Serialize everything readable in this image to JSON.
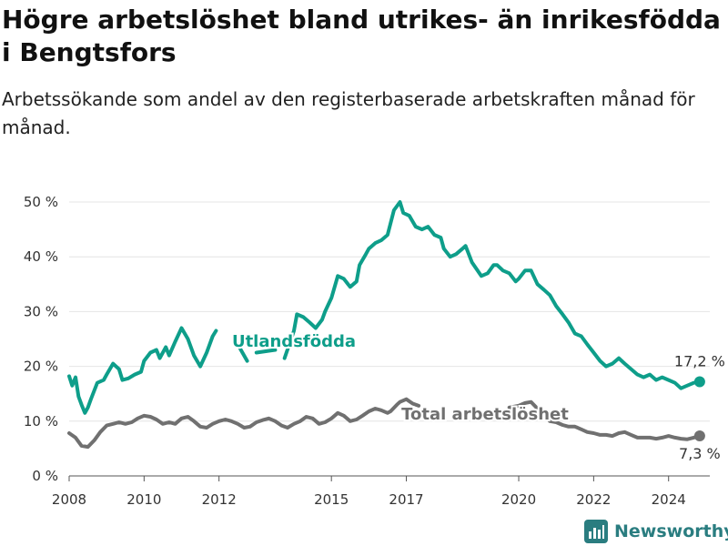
{
  "header": {
    "title": "Högre arbetslöshet bland utrikes- än inrikesfödda i Bengtsfors",
    "subtitle": "Arbetssökande som andel av den registerbaserade arbetskraften månad för månad."
  },
  "branding": {
    "name": "Newsworthy",
    "icon": "bar-chart-logo-icon",
    "color": "#2a7d80"
  },
  "chart_data": {
    "type": "line",
    "title": "Högre arbetslöshet bland utrikes- än inrikesfödda i Bengtsfors",
    "subtitle": "Arbetssökande som andel av den registerbaserade arbetskraften månad för månad.",
    "xlim": [
      2008,
      2025.1
    ],
    "ylim": [
      0,
      50
    ],
    "x_ticks": [
      2008,
      2010,
      2012,
      2015,
      2017,
      2020,
      2022,
      2024
    ],
    "x_tick_labels": [
      "2008",
      "2010",
      "2012",
      "2015",
      "2017",
      "2020",
      "2022",
      "2024"
    ],
    "y_ticks": [
      0,
      10,
      20,
      30,
      40,
      50
    ],
    "y_tick_labels": [
      "0 %",
      "10 %",
      "20 %",
      "30 %",
      "40 %",
      "50 %"
    ],
    "grid": "horizontal",
    "series": [
      {
        "name": "Utlandsfödda",
        "color": "#0e9e8a",
        "end_label": "17,2 %",
        "points": [
          [
            2008.0,
            18.2
          ],
          [
            2008.08,
            16.5
          ],
          [
            2008.17,
            18.0
          ],
          [
            2008.25,
            14.5
          ],
          [
            2008.33,
            13.0
          ],
          [
            2008.42,
            11.5
          ],
          [
            2008.5,
            12.5
          ],
          [
            2008.58,
            14.0
          ],
          [
            2008.75,
            17.0
          ],
          [
            2008.92,
            17.5
          ],
          [
            2009.0,
            18.5
          ],
          [
            2009.17,
            20.5
          ],
          [
            2009.33,
            19.5
          ],
          [
            2009.42,
            17.5
          ],
          [
            2009.58,
            17.8
          ],
          [
            2009.75,
            18.5
          ],
          [
            2009.92,
            19.0
          ],
          [
            2010.0,
            21.0
          ],
          [
            2010.17,
            22.5
          ],
          [
            2010.33,
            23.0
          ],
          [
            2010.42,
            21.5
          ],
          [
            2010.58,
            23.5
          ],
          [
            2010.67,
            22.0
          ],
          [
            2010.83,
            24.5
          ],
          [
            2011.0,
            27.0
          ],
          [
            2011.17,
            25.0
          ],
          [
            2011.33,
            22.0
          ],
          [
            2011.5,
            20.0
          ],
          [
            2011.67,
            22.5
          ],
          [
            2011.83,
            25.5
          ],
          [
            2011.92,
            26.5
          ],
          [
            2012.5,
            24.0
          ],
          [
            2012.75,
            21.0
          ],
          [
            2013.0,
            22.5
          ],
          [
            2013.5,
            23.0
          ],
          [
            2013.75,
            21.5
          ],
          [
            2014.0,
            26.5
          ],
          [
            2014.08,
            29.5
          ],
          [
            2014.25,
            29.0
          ],
          [
            2014.42,
            28.0
          ],
          [
            2014.58,
            27.0
          ],
          [
            2014.75,
            28.5
          ],
          [
            2014.83,
            30.0
          ],
          [
            2015.0,
            32.5
          ],
          [
            2015.17,
            36.5
          ],
          [
            2015.33,
            36.0
          ],
          [
            2015.5,
            34.5
          ],
          [
            2015.67,
            35.5
          ],
          [
            2015.75,
            38.5
          ],
          [
            2015.92,
            40.5
          ],
          [
            2016.0,
            41.5
          ],
          [
            2016.17,
            42.5
          ],
          [
            2016.33,
            43.0
          ],
          [
            2016.5,
            44.0
          ],
          [
            2016.67,
            48.5
          ],
          [
            2016.83,
            50.0
          ],
          [
            2016.92,
            48.0
          ],
          [
            2017.08,
            47.5
          ],
          [
            2017.25,
            45.5
          ],
          [
            2017.42,
            45.0
          ],
          [
            2017.58,
            45.5
          ],
          [
            2017.75,
            44.0
          ],
          [
            2017.92,
            43.5
          ],
          [
            2018.0,
            41.5
          ],
          [
            2018.17,
            40.0
          ],
          [
            2018.33,
            40.5
          ],
          [
            2018.5,
            41.5
          ],
          [
            2018.58,
            42.0
          ],
          [
            2018.75,
            39.0
          ],
          [
            2019.0,
            36.5
          ],
          [
            2019.17,
            37.0
          ],
          [
            2019.33,
            38.5
          ],
          [
            2019.42,
            38.5
          ],
          [
            2019.58,
            37.5
          ],
          [
            2019.75,
            37.0
          ],
          [
            2019.92,
            35.5
          ],
          [
            2020.0,
            36.0
          ],
          [
            2020.17,
            37.5
          ],
          [
            2020.33,
            37.5
          ],
          [
            2020.5,
            35.0
          ],
          [
            2020.67,
            34.0
          ],
          [
            2020.83,
            33.0
          ],
          [
            2021.0,
            31.0
          ],
          [
            2021.17,
            29.5
          ],
          [
            2021.33,
            28.0
          ],
          [
            2021.5,
            26.0
          ],
          [
            2021.67,
            25.5
          ],
          [
            2021.83,
            24.0
          ],
          [
            2022.0,
            22.5
          ],
          [
            2022.17,
            21.0
          ],
          [
            2022.33,
            20.0
          ],
          [
            2022.5,
            20.5
          ],
          [
            2022.67,
            21.5
          ],
          [
            2022.83,
            20.5
          ],
          [
            2023.0,
            19.5
          ],
          [
            2023.17,
            18.5
          ],
          [
            2023.33,
            18.0
          ],
          [
            2023.5,
            18.5
          ],
          [
            2023.67,
            17.5
          ],
          [
            2023.83,
            18.0
          ],
          [
            2024.0,
            17.5
          ],
          [
            2024.17,
            17.0
          ],
          [
            2024.33,
            16.0
          ],
          [
            2024.5,
            16.5
          ],
          [
            2024.67,
            17.0
          ],
          [
            2024.83,
            17.2
          ]
        ],
        "gap_intervals": [
          [
            2011.92,
            2012.5
          ],
          [
            2012.75,
            2013.0
          ],
          [
            2013.5,
            2013.75
          ]
        ]
      },
      {
        "name": "Total arbetslöshet",
        "color": "#707070",
        "end_label": "7,3 %",
        "points": [
          [
            2008.0,
            7.8
          ],
          [
            2008.17,
            7.0
          ],
          [
            2008.33,
            5.5
          ],
          [
            2008.5,
            5.3
          ],
          [
            2008.67,
            6.5
          ],
          [
            2008.83,
            8.0
          ],
          [
            2009.0,
            9.2
          ],
          [
            2009.17,
            9.5
          ],
          [
            2009.33,
            9.8
          ],
          [
            2009.5,
            9.5
          ],
          [
            2009.67,
            9.8
          ],
          [
            2009.83,
            10.5
          ],
          [
            2010.0,
            11.0
          ],
          [
            2010.17,
            10.8
          ],
          [
            2010.33,
            10.3
          ],
          [
            2010.5,
            9.5
          ],
          [
            2010.67,
            9.8
          ],
          [
            2010.83,
            9.5
          ],
          [
            2011.0,
            10.5
          ],
          [
            2011.17,
            10.8
          ],
          [
            2011.33,
            10.0
          ],
          [
            2011.5,
            9.0
          ],
          [
            2011.67,
            8.8
          ],
          [
            2011.83,
            9.5
          ],
          [
            2012.0,
            10.0
          ],
          [
            2012.17,
            10.3
          ],
          [
            2012.33,
            10.0
          ],
          [
            2012.5,
            9.5
          ],
          [
            2012.67,
            8.8
          ],
          [
            2012.83,
            9.0
          ],
          [
            2013.0,
            9.8
          ],
          [
            2013.17,
            10.2
          ],
          [
            2013.33,
            10.5
          ],
          [
            2013.5,
            10.0
          ],
          [
            2013.67,
            9.2
          ],
          [
            2013.83,
            8.8
          ],
          [
            2014.0,
            9.5
          ],
          [
            2014.17,
            10.0
          ],
          [
            2014.33,
            10.8
          ],
          [
            2014.5,
            10.5
          ],
          [
            2014.67,
            9.5
          ],
          [
            2014.83,
            9.8
          ],
          [
            2015.0,
            10.5
          ],
          [
            2015.17,
            11.5
          ],
          [
            2015.33,
            11.0
          ],
          [
            2015.5,
            10.0
          ],
          [
            2015.67,
            10.3
          ],
          [
            2015.83,
            11.0
          ],
          [
            2016.0,
            11.8
          ],
          [
            2016.17,
            12.3
          ],
          [
            2016.33,
            12.0
          ],
          [
            2016.5,
            11.5
          ],
          [
            2016.58,
            11.8
          ],
          [
            2016.75,
            13.0
          ],
          [
            2016.83,
            13.5
          ],
          [
            2017.0,
            14.0
          ],
          [
            2017.17,
            13.2
          ],
          [
            2017.33,
            12.8
          ],
          [
            2019.75,
            12.5
          ],
          [
            2020.0,
            12.8
          ],
          [
            2020.17,
            13.3
          ],
          [
            2020.33,
            13.5
          ],
          [
            2020.5,
            12.3
          ],
          [
            2020.67,
            11.5
          ],
          [
            2020.83,
            10.0
          ],
          [
            2021.0,
            9.8
          ],
          [
            2021.17,
            9.3
          ],
          [
            2021.33,
            9.0
          ],
          [
            2021.5,
            9.0
          ],
          [
            2021.67,
            8.5
          ],
          [
            2021.83,
            8.0
          ],
          [
            2022.0,
            7.8
          ],
          [
            2022.17,
            7.5
          ],
          [
            2022.33,
            7.5
          ],
          [
            2022.5,
            7.3
          ],
          [
            2022.67,
            7.8
          ],
          [
            2022.83,
            8.0
          ],
          [
            2023.0,
            7.5
          ],
          [
            2023.17,
            7.0
          ],
          [
            2023.33,
            7.0
          ],
          [
            2023.5,
            7.0
          ],
          [
            2023.67,
            6.8
          ],
          [
            2023.83,
            7.0
          ],
          [
            2024.0,
            7.3
          ],
          [
            2024.17,
            7.0
          ],
          [
            2024.33,
            6.8
          ],
          [
            2024.5,
            6.7
          ],
          [
            2024.67,
            7.0
          ],
          [
            2024.83,
            7.3
          ]
        ],
        "gap_intervals": [
          [
            2017.33,
            2019.75
          ]
        ]
      }
    ]
  }
}
